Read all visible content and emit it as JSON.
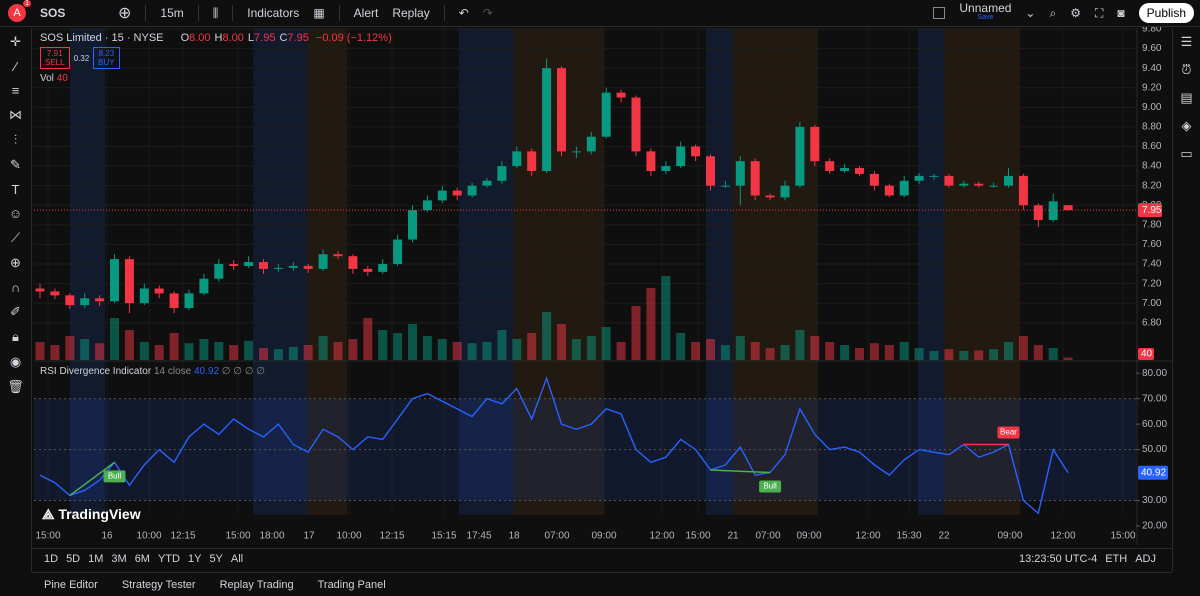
{
  "toolbar": {
    "avatar": "A",
    "badge": "1",
    "symbol": "SOS",
    "interval": "15m",
    "indicators": "Indicators",
    "alert": "Alert",
    "replay": "Replay",
    "layout_name": "Unnamed",
    "save": "Save",
    "publish": "Publish"
  },
  "chart_data": {
    "type": "candlestick",
    "title": "SOS Limited · 15 · NYSE",
    "ohlc_legend": [
      {
        "key": "O",
        "value": "8.00"
      },
      {
        "key": "H",
        "value": "8.00"
      },
      {
        "key": "L",
        "value": "7.95"
      },
      {
        "key": "C",
        "value": "7.95"
      }
    ],
    "change": "−0.09 (−1.12%)",
    "quote": {
      "sell": "7.91",
      "sell_label": "SELL",
      "spread": "0.32",
      "buy": "8.23",
      "buy_label": "BUY"
    },
    "up_color": "#089981",
    "down_color": "#f23645",
    "candles": [
      [
        7.15,
        7.2,
        7.05,
        7.12
      ],
      [
        7.12,
        7.15,
        7.04,
        7.08
      ],
      [
        7.08,
        7.1,
        6.94,
        6.98
      ],
      [
        6.98,
        7.1,
        6.95,
        7.05
      ],
      [
        7.05,
        7.08,
        6.97,
        7.02
      ],
      [
        7.02,
        7.5,
        7.0,
        7.45
      ],
      [
        7.45,
        7.48,
        6.9,
        7.0
      ],
      [
        7.0,
        7.2,
        6.98,
        7.15
      ],
      [
        7.15,
        7.18,
        7.05,
        7.1
      ],
      [
        7.1,
        7.12,
        6.9,
        6.95
      ],
      [
        6.95,
        7.14,
        6.93,
        7.1
      ],
      [
        7.1,
        7.3,
        7.08,
        7.25
      ],
      [
        7.25,
        7.45,
        7.22,
        7.4
      ],
      [
        7.4,
        7.44,
        7.34,
        7.38
      ],
      [
        7.38,
        7.48,
        7.36,
        7.42
      ],
      [
        7.42,
        7.45,
        7.3,
        7.35
      ],
      [
        7.35,
        7.4,
        7.32,
        7.36
      ],
      [
        7.36,
        7.42,
        7.33,
        7.38
      ],
      [
        7.38,
        7.4,
        7.31,
        7.35
      ],
      [
        7.35,
        7.55,
        7.33,
        7.5
      ],
      [
        7.5,
        7.53,
        7.45,
        7.48
      ],
      [
        7.48,
        7.5,
        7.3,
        7.35
      ],
      [
        7.35,
        7.38,
        7.28,
        7.32
      ],
      [
        7.32,
        7.45,
        7.3,
        7.4
      ],
      [
        7.4,
        7.7,
        7.38,
        7.65
      ],
      [
        7.65,
        8.0,
        7.62,
        7.95
      ],
      [
        7.95,
        8.1,
        7.93,
        8.05
      ],
      [
        8.05,
        8.2,
        8.02,
        8.15
      ],
      [
        8.15,
        8.18,
        8.05,
        8.1
      ],
      [
        8.1,
        8.23,
        8.08,
        8.2
      ],
      [
        8.2,
        8.28,
        8.18,
        8.25
      ],
      [
        8.25,
        8.45,
        8.22,
        8.4
      ],
      [
        8.4,
        8.6,
        8.38,
        8.55
      ],
      [
        8.55,
        8.58,
        8.3,
        8.35
      ],
      [
        8.35,
        9.5,
        8.33,
        9.4
      ],
      [
        9.4,
        9.42,
        8.5,
        8.55
      ],
      [
        8.55,
        8.6,
        8.48,
        8.55
      ],
      [
        8.55,
        8.75,
        8.52,
        8.7
      ],
      [
        8.7,
        9.2,
        8.68,
        9.15
      ],
      [
        9.15,
        9.18,
        9.05,
        9.1
      ],
      [
        9.1,
        9.12,
        8.5,
        8.55
      ],
      [
        8.55,
        8.58,
        8.3,
        8.35
      ],
      [
        8.35,
        8.45,
        8.32,
        8.4
      ],
      [
        8.4,
        8.65,
        8.38,
        8.6
      ],
      [
        8.6,
        8.62,
        8.45,
        8.5
      ],
      [
        8.5,
        8.52,
        8.15,
        8.2
      ],
      [
        8.2,
        8.25,
        8.18,
        8.2
      ],
      [
        8.2,
        8.5,
        8.0,
        8.45
      ],
      [
        8.45,
        8.48,
        8.05,
        8.1
      ],
      [
        8.1,
        8.12,
        8.05,
        8.08
      ],
      [
        8.08,
        8.25,
        8.05,
        8.2
      ],
      [
        8.2,
        8.85,
        8.18,
        8.8
      ],
      [
        8.8,
        8.82,
        8.4,
        8.45
      ],
      [
        8.45,
        8.48,
        8.32,
        8.35
      ],
      [
        8.35,
        8.42,
        8.33,
        8.38
      ],
      [
        8.38,
        8.4,
        8.3,
        8.32
      ],
      [
        8.32,
        8.35,
        8.15,
        8.2
      ],
      [
        8.2,
        8.22,
        8.08,
        8.1
      ],
      [
        8.1,
        8.3,
        8.08,
        8.25
      ],
      [
        8.25,
        8.33,
        8.22,
        8.3
      ],
      [
        8.3,
        8.32,
        8.26,
        8.3
      ],
      [
        8.3,
        8.32,
        8.18,
        8.2
      ],
      [
        8.2,
        8.25,
        8.18,
        8.22
      ],
      [
        8.22,
        8.24,
        8.18,
        8.2
      ],
      [
        8.2,
        8.23,
        8.18,
        8.2
      ],
      [
        8.2,
        8.38,
        8.18,
        8.3
      ],
      [
        8.3,
        8.32,
        7.95,
        8.0
      ],
      [
        8.0,
        8.02,
        7.78,
        7.85
      ],
      [
        7.85,
        8.12,
        7.83,
        8.04
      ],
      [
        8.0,
        8.0,
        7.95,
        7.95
      ]
    ],
    "ylim": [
      6.42,
      9.81
    ],
    "yticks": [
      {
        "value": 6.8,
        "label": "6.80"
      },
      {
        "value": 7,
        "label": "7.00"
      },
      {
        "value": 7.2,
        "label": "7.20"
      },
      {
        "value": 7.4,
        "label": "7.40"
      },
      {
        "value": 7.6,
        "label": "7.60"
      },
      {
        "value": 7.8,
        "label": "7.80"
      },
      {
        "value": 8,
        "label": "8.00"
      },
      {
        "value": 8.2,
        "label": "8.20"
      },
      {
        "value": 8.4,
        "label": "8.40"
      },
      {
        "value": 8.6,
        "label": "8.60"
      },
      {
        "value": 8.8,
        "label": "8.80"
      },
      {
        "value": 9,
        "label": "9.00"
      },
      {
        "value": 9.2,
        "label": "9.20"
      },
      {
        "value": 9.4,
        "label": "9.40"
      },
      {
        "value": 9.6,
        "label": "9.60"
      },
      {
        "value": 9.8,
        "label": "9.80"
      }
    ],
    "volume": {
      "name": "Vol",
      "ylim": [
        0,
        1500
      ],
      "values": [
        300,
        250,
        400,
        350,
        280,
        700,
        500,
        300,
        250,
        450,
        280,
        350,
        300,
        250,
        320,
        200,
        180,
        220,
        250,
        400,
        300,
        350,
        700,
        500,
        450,
        600,
        400,
        350,
        300,
        280,
        300,
        500,
        350,
        450,
        800,
        600,
        350,
        400,
        550,
        300,
        900,
        1200,
        1400,
        450,
        300,
        350,
        250,
        400,
        300,
        200,
        250,
        500,
        400,
        300,
        250,
        200,
        280,
        250,
        300,
        200,
        150,
        180,
        150,
        160,
        180,
        300,
        400,
        250,
        200,
        40
      ]
    },
    "time_labels": [
      "15:00",
      "16",
      "10:00",
      "12:15",
      "15:00",
      "18:00",
      "17",
      "10:00",
      "12:15",
      "15:15",
      "17:45",
      "18",
      "07:00",
      "09:00",
      "12:00",
      "15:00",
      "21",
      "07:00",
      "09:00",
      "12:00",
      "15:30",
      "22",
      "09:00",
      "12:00",
      "15:00"
    ],
    "rsi": {
      "name": "RSI Divergence Indicator",
      "params": "14 close",
      "extra": "∅ ∅ ∅ ∅",
      "color": "#2962ff",
      "values": [
        40,
        37,
        32,
        34,
        38,
        45,
        36,
        44,
        50,
        45,
        55,
        60,
        56,
        62,
        58,
        55,
        60,
        52,
        49,
        58,
        55,
        50,
        55,
        54,
        62,
        70,
        72,
        69,
        66,
        63,
        70,
        68,
        74,
        62,
        78,
        60,
        58,
        60,
        66,
        64,
        50,
        45,
        47,
        54,
        50,
        42,
        44,
        51,
        40,
        41,
        48,
        66,
        56,
        50,
        51,
        49,
        44,
        40,
        46,
        50,
        49,
        48,
        52,
        47,
        49,
        52,
        30,
        25,
        50,
        40.92
      ],
      "ylim": [
        20,
        84.4
      ],
      "yticks": [
        {
          "value": 20,
          "label": "20.00"
        },
        {
          "value": 30,
          "label": "30.00"
        },
        {
          "value": 50,
          "label": "50.00"
        },
        {
          "value": 60,
          "label": "60.00"
        },
        {
          "value": 70,
          "label": "70.00"
        },
        {
          "value": 80,
          "label": "80.00"
        }
      ],
      "band": [
        30,
        70
      ],
      "levels": [
        70,
        50,
        30
      ]
    },
    "divergences": [
      {
        "label": "Bull",
        "from": 2,
        "to": 5,
        "color": "#4caf50"
      },
      {
        "label": "Bull",
        "from": 45,
        "to": 49,
        "color": "#4caf50"
      },
      {
        "label": "Bear",
        "from": 62,
        "to": 65,
        "color": "#f23645"
      }
    ],
    "watermark": "TradingView"
  },
  "range_bar": {
    "ranges": [
      "1D",
      "5D",
      "1M",
      "3M",
      "6M",
      "YTD",
      "1Y",
      "5Y",
      "All"
    ],
    "clock": "13:23:50 UTC-4",
    "session": "ETH",
    "adj": "ADJ"
  },
  "bottom_tabs": [
    "Pine Editor",
    "Strategy Tester",
    "Replay Trading",
    "Trading Panel"
  ]
}
